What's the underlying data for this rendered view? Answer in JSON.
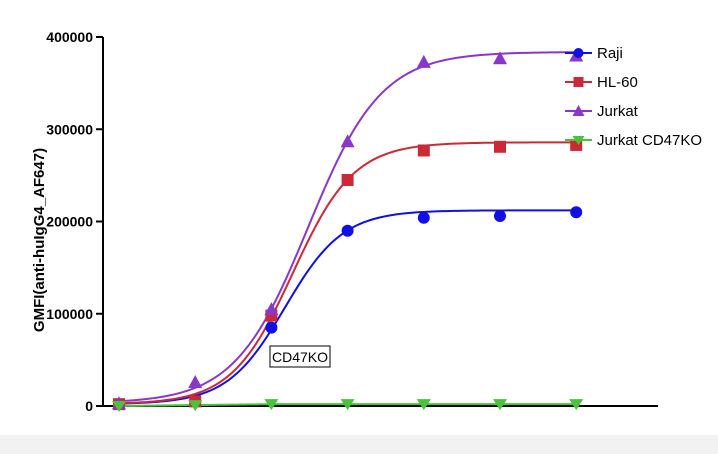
{
  "chart_data": {
    "type": "line",
    "title": "",
    "xlabel": "",
    "ylabel": "GMFI(anti-huIgG4_AF647)",
    "ylim": [
      0,
      400000
    ],
    "y_ticks": [
      "0",
      "100000",
      "200000",
      "300000",
      "400000"
    ],
    "x_points": [
      1,
      2,
      3,
      4,
      5,
      6,
      7
    ],
    "grid": false,
    "legend_position": "right",
    "annotation": "CD47KO",
    "series": [
      {
        "name": "Raji",
        "color": "#1010e6",
        "marker": "circle",
        "values": [
          2000,
          5000,
          85000,
          190000,
          204000,
          206000,
          210000
        ]
      },
      {
        "name": "HL-60",
        "color": "#cc2936",
        "marker": "square",
        "values": [
          2000,
          5000,
          98000,
          245000,
          277000,
          281000,
          283000
        ]
      },
      {
        "name": "Jurkat",
        "color": "#8a37c9",
        "marker": "triangle-up",
        "values": [
          3000,
          26000,
          105000,
          287000,
          373000,
          377000,
          380000
        ]
      },
      {
        "name": "Jurkat CD47KO",
        "color": "#47c43a",
        "marker": "triangle-down",
        "values": [
          0,
          1000,
          2000,
          2000,
          2000,
          2000,
          2000
        ]
      }
    ]
  }
}
